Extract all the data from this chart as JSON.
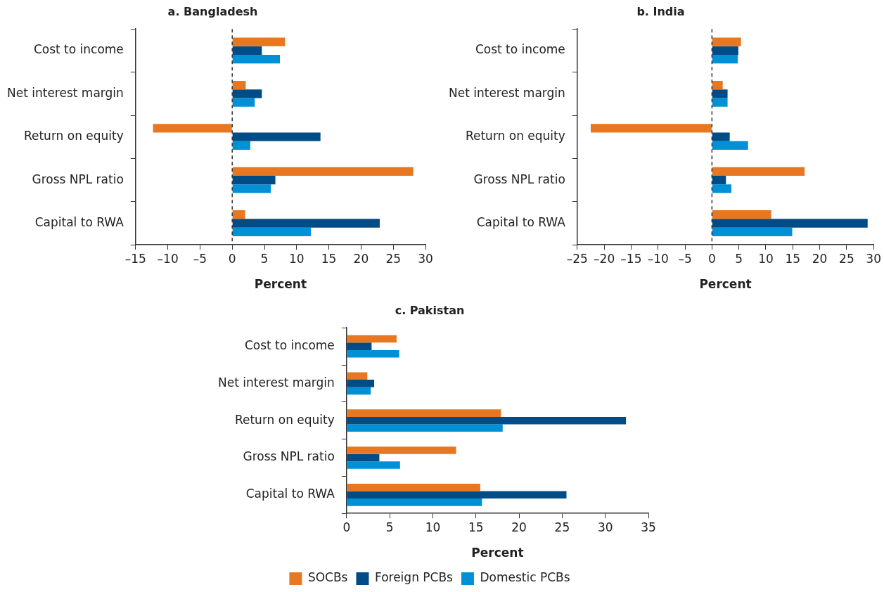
{
  "chart_data": [
    {
      "type": "bar",
      "orientation": "horizontal",
      "title": "a. Bangladesh",
      "xlabel": "Percent",
      "categories": [
        "Cost to income",
        "Net interest margin",
        "Return on equity",
        "Gross NPL ratio",
        "Capital to RWA"
      ],
      "series": [
        {
          "color": "#e87722",
          "values": [
            8.2,
            2.1,
            -12.3,
            28.1,
            2.0
          ]
        },
        {
          "color": "#004c87",
          "values": [
            4.6,
            4.6,
            13.7,
            6.7,
            22.9
          ]
        },
        {
          "color": "#0090d5",
          "values": [
            7.4,
            3.5,
            2.8,
            6.0,
            12.2
          ]
        }
      ],
      "xlim": [
        -15,
        30
      ],
      "xticks": [
        {
          "value": -15,
          "label": "–15"
        },
        {
          "value": -10,
          "label": "–10"
        },
        {
          "value": -5,
          "label": "–5"
        },
        0,
        5,
        10,
        15,
        20,
        25,
        30
      ],
      "ref_lines": [
        {
          "axis": "x",
          "value": 0,
          "line_style": "dashed",
          "color": "#333333"
        }
      ],
      "grid": false,
      "legend": false
    },
    {
      "type": "bar",
      "orientation": "horizontal",
      "title": "b. India",
      "xlabel": "Percent",
      "categories": [
        "Cost to income",
        "Net interest margin",
        "Return on equity",
        "Gross NPL ratio",
        "Capital to RWA"
      ],
      "series": [
        {
          "color": "#e87722",
          "values": [
            5.4,
            2.0,
            -22.5,
            17.2,
            11.0
          ]
        },
        {
          "color": "#004c87",
          "values": [
            4.9,
            2.9,
            3.3,
            2.6,
            28.9
          ]
        },
        {
          "color": "#0090d5",
          "values": [
            4.8,
            2.9,
            6.7,
            3.6,
            14.9
          ]
        }
      ],
      "xlim": [
        -25,
        30
      ],
      "xticks": [
        {
          "value": -25,
          "label": "–25"
        },
        {
          "value": -20,
          "label": "–20"
        },
        {
          "value": -15,
          "label": "–15"
        },
        {
          "value": -10,
          "label": "–10"
        },
        {
          "value": -5,
          "label": "–5"
        },
        0,
        5,
        10,
        15,
        20,
        25,
        30
      ],
      "ref_lines": [
        {
          "axis": "x",
          "value": 0,
          "line_style": "dashed",
          "color": "#333333"
        }
      ],
      "grid": false,
      "legend": false
    },
    {
      "type": "bar",
      "orientation": "horizontal",
      "title": "c. Pakistan",
      "xlabel": "Percent",
      "categories": [
        "Cost to income",
        "Net interest margin",
        "Return on equity",
        "Gross NPL ratio",
        "Capital to RWA"
      ],
      "series": [
        {
          "name": "SOCBs",
          "color": "#e87722",
          "values": [
            5.8,
            2.4,
            17.9,
            12.7,
            15.5
          ]
        },
        {
          "name": "Foreign PCBs",
          "color": "#004c87",
          "values": [
            2.9,
            3.2,
            32.4,
            3.8,
            25.5
          ]
        },
        {
          "name": "Domestic PCBs",
          "color": "#0090d5",
          "values": [
            6.1,
            2.8,
            18.1,
            6.2,
            15.7
          ]
        }
      ],
      "xlim": [
        0,
        35
      ],
      "xticks": [
        0,
        5,
        10,
        15,
        20,
        25,
        30,
        35
      ],
      "grid": false,
      "legend": "bottom"
    }
  ]
}
